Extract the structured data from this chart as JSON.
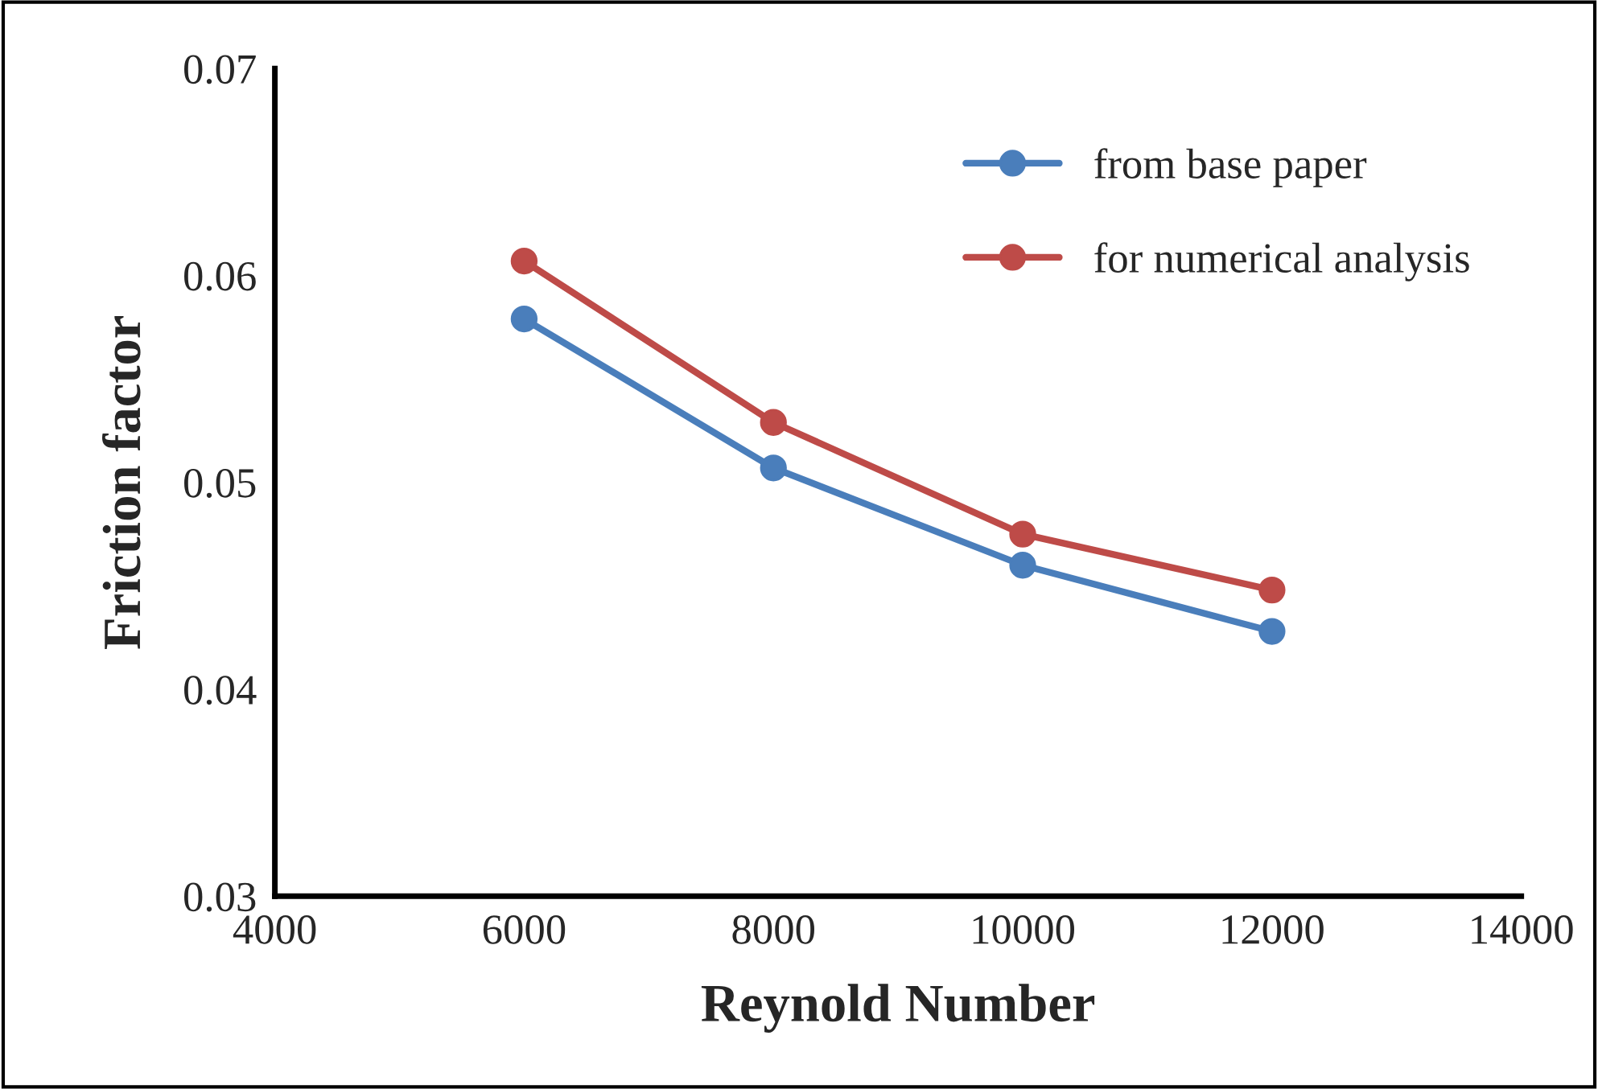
{
  "chart_data": {
    "type": "line",
    "xlabel": "Reynold Number",
    "ylabel": "Friction factor",
    "x": [
      6000,
      8000,
      10000,
      12000
    ],
    "series": [
      {
        "name": "from base paper",
        "color": "#4a7ebb",
        "values": [
          0.0579,
          0.0507,
          0.046,
          0.0428
        ]
      },
      {
        "name": "for numerical analysis",
        "color": "#be4b48",
        "values": [
          0.0607,
          0.0529,
          0.0475,
          0.0448
        ]
      }
    ],
    "xlim": [
      4000,
      14000
    ],
    "xticks": [
      4000,
      6000,
      8000,
      10000,
      12000,
      14000
    ],
    "ylim": [
      0.03,
      0.07
    ],
    "yticks": [
      {
        "value": 0.03,
        "label": "0.03"
      },
      {
        "value": 0.04,
        "label": "0.04"
      },
      {
        "value": 0.05,
        "label": "0.05"
      },
      {
        "value": 0.06,
        "label": "0.06"
      },
      {
        "value": 0.07,
        "label": "0.07"
      }
    ],
    "grid": false,
    "legend": "top right",
    "marker": "circle",
    "line_style": "solid"
  }
}
